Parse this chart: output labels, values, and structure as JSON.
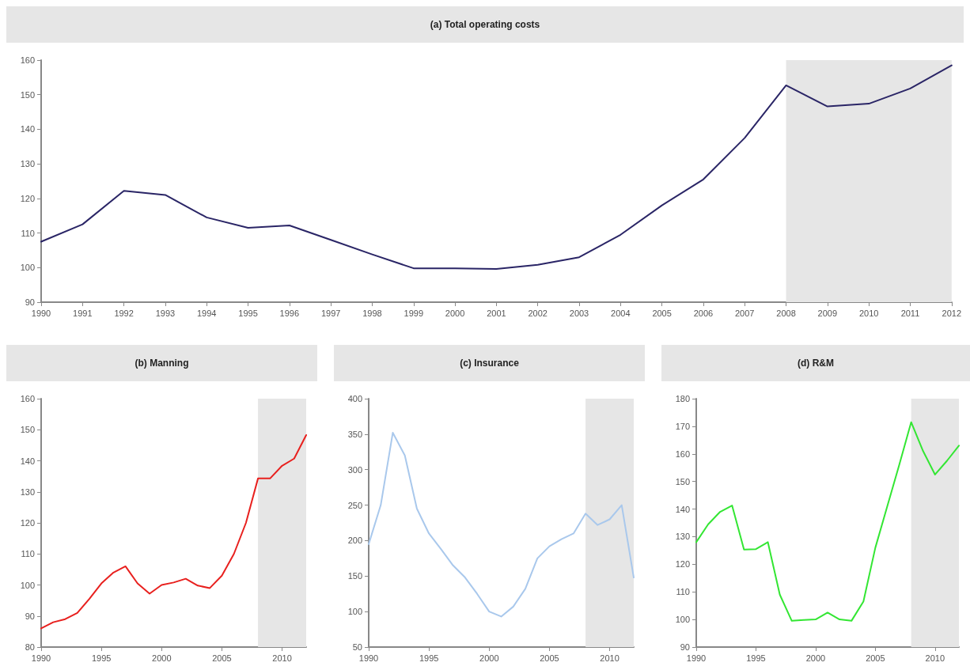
{
  "chart_data": [
    {
      "type": "line",
      "title": "(a) Total operating costs",
      "x": [
        1990,
        1991,
        1992,
        1993,
        1994,
        1995,
        1996,
        1997,
        1998,
        1999,
        2000,
        2001,
        2002,
        2003,
        2004,
        2005,
        2006,
        2007,
        2008,
        2009,
        2010,
        2011,
        2012
      ],
      "series": [
        {
          "color": "#2a2566",
          "values": [
            107.5,
            112.5,
            122.2,
            121,
            114.5,
            111.5,
            112.2,
            108,
            103.8,
            99.8,
            99.8,
            99.6,
            100.8,
            103,
            109.5,
            118,
            125.5,
            137.5,
            152.7,
            146.6,
            147.4,
            151.8,
            158.5
          ]
        }
      ],
      "xlim": [
        1990,
        2012
      ],
      "xticks": [
        1990,
        1991,
        1992,
        1993,
        1994,
        1995,
        1996,
        1997,
        1998,
        1999,
        2000,
        2001,
        2002,
        2003,
        2004,
        2005,
        2006,
        2007,
        2008,
        2009,
        2010,
        2011,
        2012
      ],
      "ylim": [
        90,
        160
      ],
      "yticks": [
        90,
        100,
        110,
        120,
        130,
        140,
        150,
        160
      ],
      "grid": false,
      "marker": "none",
      "line_style": "solid",
      "bands": [
        {
          "axis": "x",
          "from": 2008,
          "to": 2012,
          "color": "#e6e6e6"
        }
      ]
    },
    {
      "type": "line",
      "title": "(b) Manning",
      "x": [
        1990,
        1991,
        1992,
        1993,
        1994,
        1995,
        1996,
        1997,
        1998,
        1999,
        2000,
        2001,
        2002,
        2003,
        2004,
        2005,
        2006,
        2007,
        2008,
        2009,
        2010,
        2011,
        2012
      ],
      "series": [
        {
          "color": "#e8201e",
          "values": [
            86,
            88,
            89,
            91,
            95.5,
            100.5,
            104,
            106,
            100.5,
            97.2,
            100,
            100.8,
            102,
            99.8,
            99,
            103,
            110,
            120,
            134.3,
            134.3,
            138.4,
            140.7,
            148.3
          ]
        }
      ],
      "xlim": [
        1990,
        2012
      ],
      "xticks": [
        1990,
        1995,
        2000,
        2005,
        2010
      ],
      "ylim": [
        80,
        160
      ],
      "yticks": [
        80,
        90,
        100,
        110,
        120,
        130,
        140,
        150,
        160
      ],
      "grid": false,
      "marker": "none",
      "line_style": "solid",
      "bands": [
        {
          "axis": "x",
          "from": 2008,
          "to": 2012,
          "color": "#e6e6e6"
        }
      ]
    },
    {
      "type": "line",
      "title": "(c) Insurance",
      "x": [
        1990,
        1991,
        1992,
        1993,
        1994,
        1995,
        1996,
        1997,
        1998,
        1999,
        2000,
        2001,
        2002,
        2003,
        2004,
        2005,
        2006,
        2007,
        2008,
        2009,
        2010,
        2011,
        2012
      ],
      "series": [
        {
          "color": "#a9c8ec",
          "values": [
            195,
            250,
            352,
            320,
            245,
            210,
            188,
            165,
            148,
            125,
            100,
            93,
            107,
            132,
            175,
            192,
            202,
            210,
            238,
            222,
            230,
            250,
            148
          ]
        }
      ],
      "xlim": [
        1990,
        2012
      ],
      "xticks": [
        1990,
        1995,
        2000,
        2005,
        2010
      ],
      "ylim": [
        50,
        400
      ],
      "yticks": [
        50,
        100,
        150,
        200,
        250,
        300,
        350,
        400
      ],
      "grid": false,
      "marker": "none",
      "line_style": "solid",
      "bands": [
        {
          "axis": "x",
          "from": 2008,
          "to": 2012,
          "color": "#e6e6e6"
        }
      ]
    },
    {
      "type": "line",
      "title": "(d) R&M",
      "x": [
        1990,
        1991,
        1992,
        1993,
        1994,
        1995,
        1996,
        1997,
        1998,
        1999,
        2000,
        2001,
        2002,
        2003,
        2004,
        2005,
        2006,
        2007,
        2008,
        2009,
        2010,
        2011,
        2012
      ],
      "series": [
        {
          "color": "#33e633",
          "values": [
            128,
            134.5,
            139,
            141.3,
            125.3,
            125.5,
            128,
            109,
            99.5,
            99.8,
            100,
            102.5,
            100,
            99.5,
            106.5,
            126,
            141,
            156,
            171.5,
            161,
            152.5,
            157.5,
            163
          ]
        }
      ],
      "xlim": [
        1990,
        2012
      ],
      "xticks": [
        1990,
        1995,
        2000,
        2005,
        2010
      ],
      "ylim": [
        90,
        180
      ],
      "yticks": [
        90,
        100,
        110,
        120,
        130,
        140,
        150,
        160,
        170,
        180
      ],
      "grid": false,
      "marker": "none",
      "line_style": "solid",
      "bands": [
        {
          "axis": "x",
          "from": 2008,
          "to": 2012,
          "color": "#e6e6e6"
        }
      ]
    }
  ]
}
